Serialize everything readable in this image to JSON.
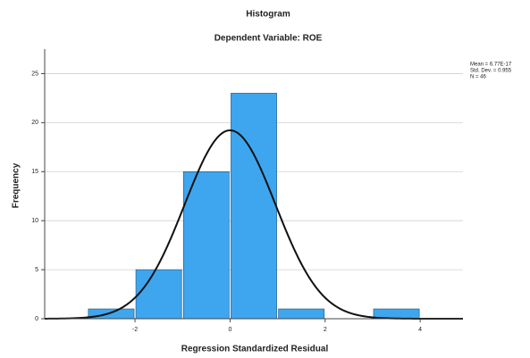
{
  "chart_data": {
    "type": "histogram",
    "title": "Histogram",
    "subtitle": "Dependent Variable: ROE",
    "x_label": "Regression Standardized Residual",
    "y_label": "Frequency",
    "bins": [
      -3,
      -2,
      -1,
      0,
      1,
      2,
      3,
      4
    ],
    "values": [
      1,
      5,
      15,
      23,
      1,
      0,
      1
    ],
    "color": "#3ea6ee",
    "xlim": [
      -3.9,
      4.9
    ],
    "xticks": [
      -2,
      0,
      2,
      4
    ],
    "ylim": [
      0,
      27.5
    ],
    "yticks": [
      0,
      5,
      10,
      15,
      20,
      25
    ],
    "grid": true,
    "stats": [
      {
        "value": 6.77e-17,
        "label": "Mean = 6.77E-17"
      },
      {
        "value": 0.955,
        "label": "Std. Dev. = 0.955"
      },
      {
        "value": 46,
        "label": "N = 46"
      }
    ]
  }
}
